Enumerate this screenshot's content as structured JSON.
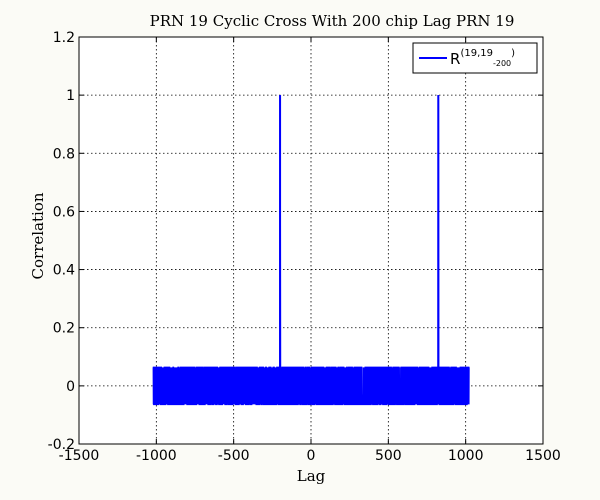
{
  "chart_data": {
    "type": "line",
    "title": "PRN 19 Cyclic Cross With 200 chip Lag PRN 19",
    "xlabel": "Lag",
    "ylabel": "Correlation",
    "xlim": [
      -1500,
      1500
    ],
    "ylim": [
      -0.2,
      1.2
    ],
    "xticks": [
      -1500,
      -1000,
      -500,
      0,
      500,
      1000,
      1500
    ],
    "yticks": [
      -0.2,
      0,
      0.2,
      0.4,
      0.6,
      0.8,
      1,
      1.2
    ],
    "xtick_labels": [
      "-1500",
      "-1000",
      "-500",
      "0",
      "500",
      "1000",
      "1500"
    ],
    "ytick_labels": [
      "-0.2",
      "0",
      "0.2",
      "0.4",
      "0.6",
      "0.8",
      "1",
      "1.2"
    ],
    "grid": true,
    "legend_position": "top-right",
    "lag_range": [
      -1023,
      1023
    ],
    "noise_levels": [
      -0.0635,
      0.0635
    ],
    "spikes": [
      {
        "x": -200,
        "y": 1.0
      },
      {
        "x": 823,
        "y": 1.0
      }
    ],
    "series": [
      {
        "name": "R",
        "legend_main": "R",
        "legend_sup": "(19,19",
        "legend_sub": "-200",
        "legend_close": ")",
        "color": "#0000ff"
      }
    ]
  }
}
